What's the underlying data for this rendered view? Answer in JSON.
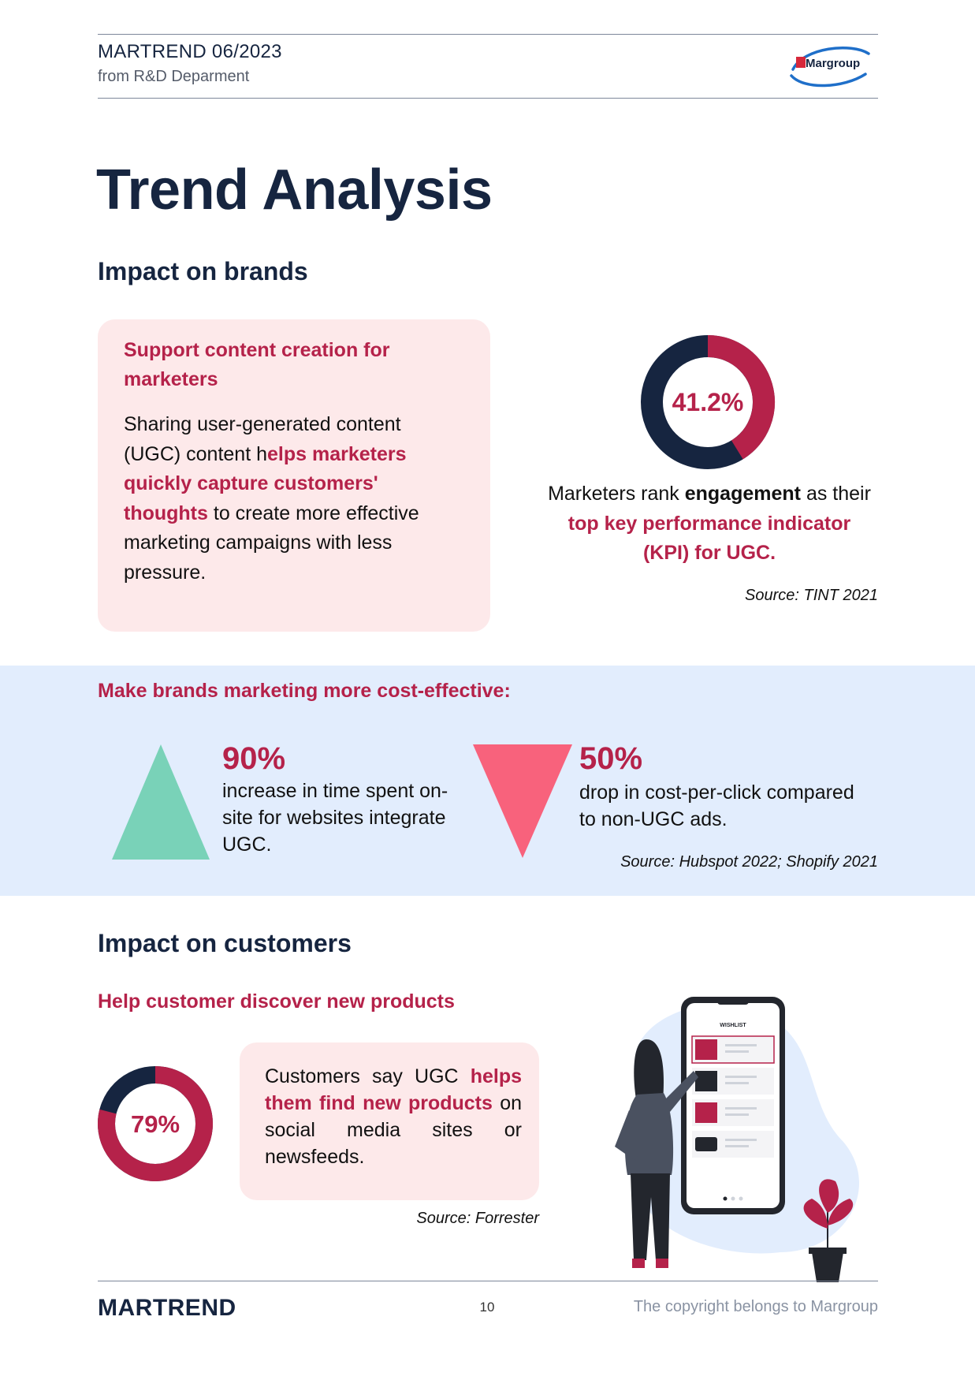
{
  "header": {
    "title": "MARTREND 06/2023",
    "subtitle": "from R&D Deparment",
    "logo_text": "Margroup"
  },
  "page_title": "Trend Analysis",
  "brands": {
    "heading": "Impact on brands",
    "card": {
      "heading": "Support content creation for marketers",
      "p1": "Sharing user-generated content (UGC) content h",
      "p2": "elps marketers quickly capture customers' thoughts",
      "p3": " to create more effective marketing campaigns with less pressure."
    },
    "kpi": {
      "percent": "41.2%",
      "fraction": 0.412,
      "t1": "Marketers rank ",
      "t2": "engagement",
      "t3": " as their ",
      "t4": "top key performance indicator (KPI) for UGC.",
      "source": "Source: TINT 2021"
    }
  },
  "cost": {
    "heading": "Make brands marketing more cost-effective:",
    "stat1": {
      "value": "90%",
      "text": "increase in time spent on-site for websites integrate UGC."
    },
    "stat2": {
      "value": "50%",
      "text": "drop in cost-per-click compared to non-UGC ads."
    },
    "source": "Source: Hubspot 2022; Shopify 2021"
  },
  "customers": {
    "heading": "Impact on customers",
    "subheading": "Help customer discover new products",
    "percent": "79%",
    "fraction": 0.79,
    "t1": "Customers say UGC ",
    "t2": "helps them find new products",
    "t3": " on social media sites or newsfeeds.",
    "source": "Source: Forrester",
    "phone_header": "WISHLIST"
  },
  "footer": {
    "brand": "MARTREND",
    "page_number": "10",
    "copyright": "The copyright belongs to Margroup"
  },
  "colors": {
    "navy": "#162540",
    "crimson": "#b5224a",
    "pink_card": "#fde9ea",
    "blue_band": "#e2edfd",
    "green_triangle": "#79d2b8",
    "red_triangle": "#f8627c"
  }
}
